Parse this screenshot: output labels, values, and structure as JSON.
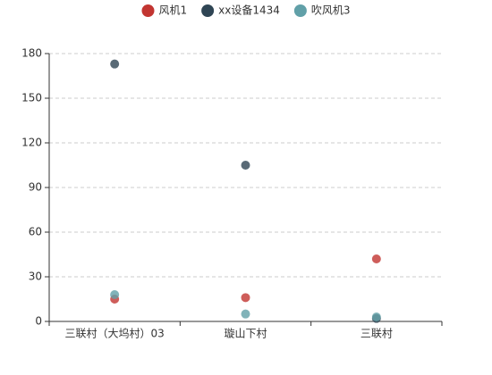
{
  "chart_data": {
    "type": "scatter",
    "categories": [
      "三联村（大坞村）03",
      "璇山下村",
      "三联村"
    ],
    "series": [
      {
        "name": "风机1",
        "color": "#c23531",
        "values": [
          15,
          16,
          42
        ]
      },
      {
        "name": "xx设备1434",
        "color": "#2f4554",
        "values": [
          173,
          105,
          2
        ]
      },
      {
        "name": "吹风机3",
        "color": "#61a0a8",
        "values": [
          18,
          5,
          3
        ]
      }
    ],
    "ylim": [
      0,
      180
    ],
    "yticks": [
      0,
      30,
      60,
      90,
      120,
      150,
      180
    ],
    "grid": true,
    "legend": "top"
  }
}
